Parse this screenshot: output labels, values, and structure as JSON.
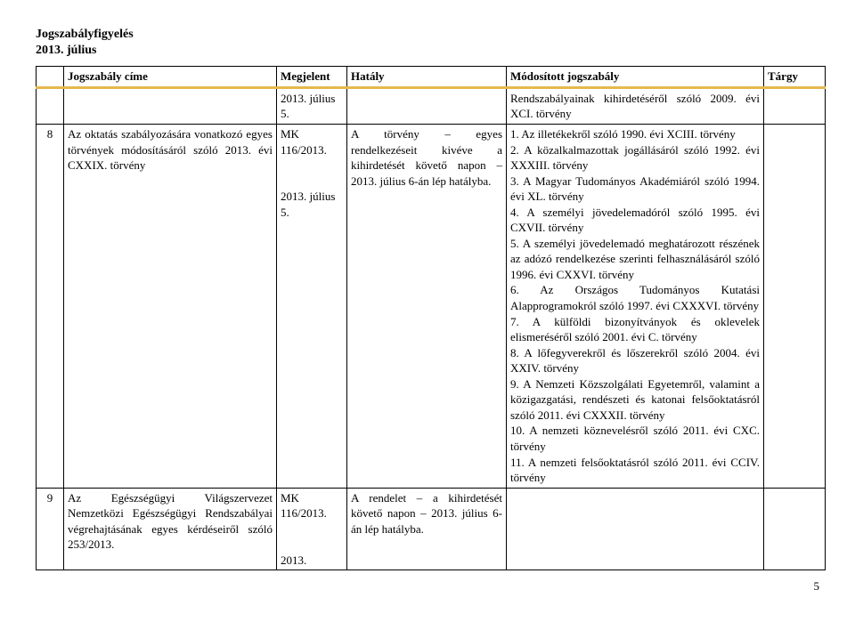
{
  "header": {
    "line1": "Jogszabályfigyelés",
    "line2": "2013. július"
  },
  "columns": {
    "num": "",
    "title": "Jogszabály címe",
    "pub": "Megjelent",
    "eff": "Hatály",
    "mod": "Módosított jogszabály",
    "targy": "Tárgy"
  },
  "rows": [
    {
      "num": "",
      "title": "",
      "pub": "2013. július 5.",
      "eff": "",
      "mod": "Rendszabályainak kihirdetéséről szóló 2009. évi XCI. törvény",
      "targy": ""
    },
    {
      "num": "8",
      "title": "Az oktatás szabályozására vonatkozó egyes törvények módosításáról szóló 2013. évi CXXIX. törvény",
      "pub": "MK 116/2013.\n\n2013. július 5.",
      "eff": "A törvény – egyes rendelkezéseit kivéve a kihirdetését követő napon – 2013. július 6-án lép hatályba.",
      "mod": "1. Az illetékekről szóló 1990. évi XCIII. törvény\n2. A közalkalmazottak jogállásáról szóló 1992. évi XXXIII. törvény\n3. A Magyar Tudományos Akadémiáról szóló 1994. évi XL. törvény\n4. A személyi jövedelemadóról szóló 1995. évi CXVII. törvény\n5. A személyi jövedelemadó meghatározott részének az adózó rendelkezése szerinti felhasználásáról szóló 1996. évi CXXVI. törvény\n6. Az Országos Tudományos Kutatási Alapprogramokról szóló 1997. évi CXXXVI. törvény\n7. A külföldi bizonyítványok és oklevelek elismeréséről szóló 2001. évi C. törvény\n8. A lőfegyverekről és lőszerekről szóló 2004. évi XXIV. törvény\n9. A Nemzeti Közszolgálati Egyetemről, valamint a közigazgatási, rendészeti és katonai felsőoktatásról szóló 2011. évi CXXXII. törvény\n10. A nemzeti köznevelésről szóló 2011. évi CXC. törvény\n11. A nemzeti felsőoktatásról szóló 2011. évi CCIV. törvény",
      "targy": ""
    },
    {
      "num": "9",
      "title": "Az Egészségügyi Világszervezet Nemzetközi Egészségügyi Rendszabályai végrehajtásának egyes kérdéseiről szóló 253/2013.",
      "pub": "MK 116/2013.\n\n2013.",
      "eff": "A rendelet – a kihirdetését követő napon – 2013. július 6-án lép hatályba.",
      "mod": "",
      "targy": ""
    }
  ],
  "page_number": "5"
}
